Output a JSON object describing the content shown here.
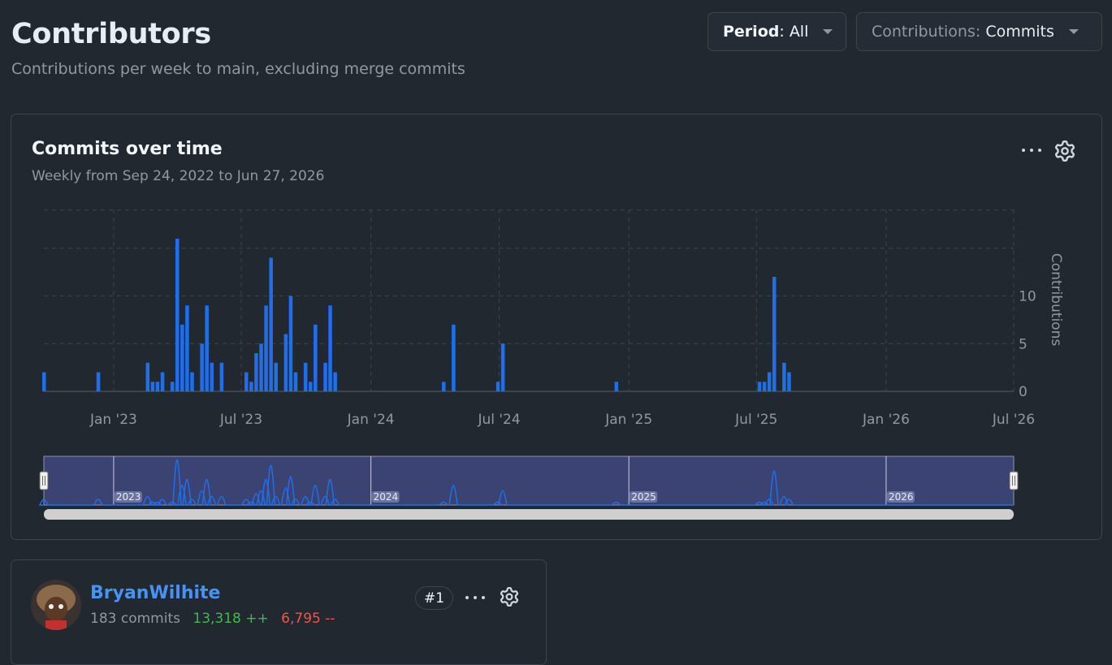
{
  "header": {
    "title": "Contributors",
    "subtitle": "Contributions per week to main, excluding merge commits"
  },
  "filters": {
    "period_key": "Period",
    "period_value": "All",
    "contrib_key": "Contributions",
    "contrib_value": "Commits"
  },
  "chart_card": {
    "title": "Commits over time",
    "subtitle": "Weekly from Sep 24, 2022 to Jun 27, 2026",
    "menu_icon": "kebab-horizontal-icon",
    "settings_icon": "gear-icon"
  },
  "chart_data": {
    "type": "bar",
    "title": "Commits over time",
    "subtitle": "Weekly from Sep 24, 2022 to Jun 27, 2026",
    "ylabel": "Contributions",
    "ylim": [
      0,
      19
    ],
    "yticks": [
      0,
      5,
      10
    ],
    "grid": true,
    "x_tick_labels": [
      "Jan '23",
      "Jul '23",
      "Jan '24",
      "Jul '24",
      "Jan '25",
      "Jul '25",
      "Jan '26",
      "Jul '26"
    ],
    "navigator_year_labels": [
      "2023",
      "2024",
      "2025",
      "2026"
    ],
    "series": [
      {
        "color": "#1f6feb",
        "points": [
          [
            "2022-09-24",
            2
          ],
          [
            "2022-12-10",
            2
          ],
          [
            "2023-02-18",
            3
          ],
          [
            "2023-02-25",
            1
          ],
          [
            "2023-03-04",
            1
          ],
          [
            "2023-03-11",
            2
          ],
          [
            "2023-03-25",
            1
          ],
          [
            "2023-04-01",
            16
          ],
          [
            "2023-04-08",
            7
          ],
          [
            "2023-04-15",
            9
          ],
          [
            "2023-04-22",
            2
          ],
          [
            "2023-05-06",
            5
          ],
          [
            "2023-05-13",
            9
          ],
          [
            "2023-05-20",
            3
          ],
          [
            "2023-06-03",
            3
          ],
          [
            "2023-07-08",
            2
          ],
          [
            "2023-07-15",
            1
          ],
          [
            "2023-07-22",
            4
          ],
          [
            "2023-07-29",
            5
          ],
          [
            "2023-08-05",
            9
          ],
          [
            "2023-08-12",
            14
          ],
          [
            "2023-08-19",
            3
          ],
          [
            "2023-09-02",
            6
          ],
          [
            "2023-09-09",
            10
          ],
          [
            "2023-09-16",
            2
          ],
          [
            "2023-09-30",
            3
          ],
          [
            "2023-10-07",
            1
          ],
          [
            "2023-10-14",
            7
          ],
          [
            "2023-10-28",
            3
          ],
          [
            "2023-11-04",
            9
          ],
          [
            "2023-11-11",
            2
          ],
          [
            "2024-04-13",
            1
          ],
          [
            "2024-04-27",
            7
          ],
          [
            "2024-06-29",
            1
          ],
          [
            "2024-07-06",
            5
          ],
          [
            "2024-12-14",
            1
          ],
          [
            "2025-07-05",
            1
          ],
          [
            "2025-07-12",
            1
          ],
          [
            "2025-07-19",
            2
          ],
          [
            "2025-07-26",
            12
          ],
          [
            "2025-08-09",
            3
          ],
          [
            "2025-08-16",
            2
          ]
        ]
      }
    ]
  },
  "contributor": {
    "name": "BryanWilhite",
    "commits": "183 commits",
    "additions": "13,318 ++",
    "deletions": "6,795 --",
    "rank": "#1"
  }
}
